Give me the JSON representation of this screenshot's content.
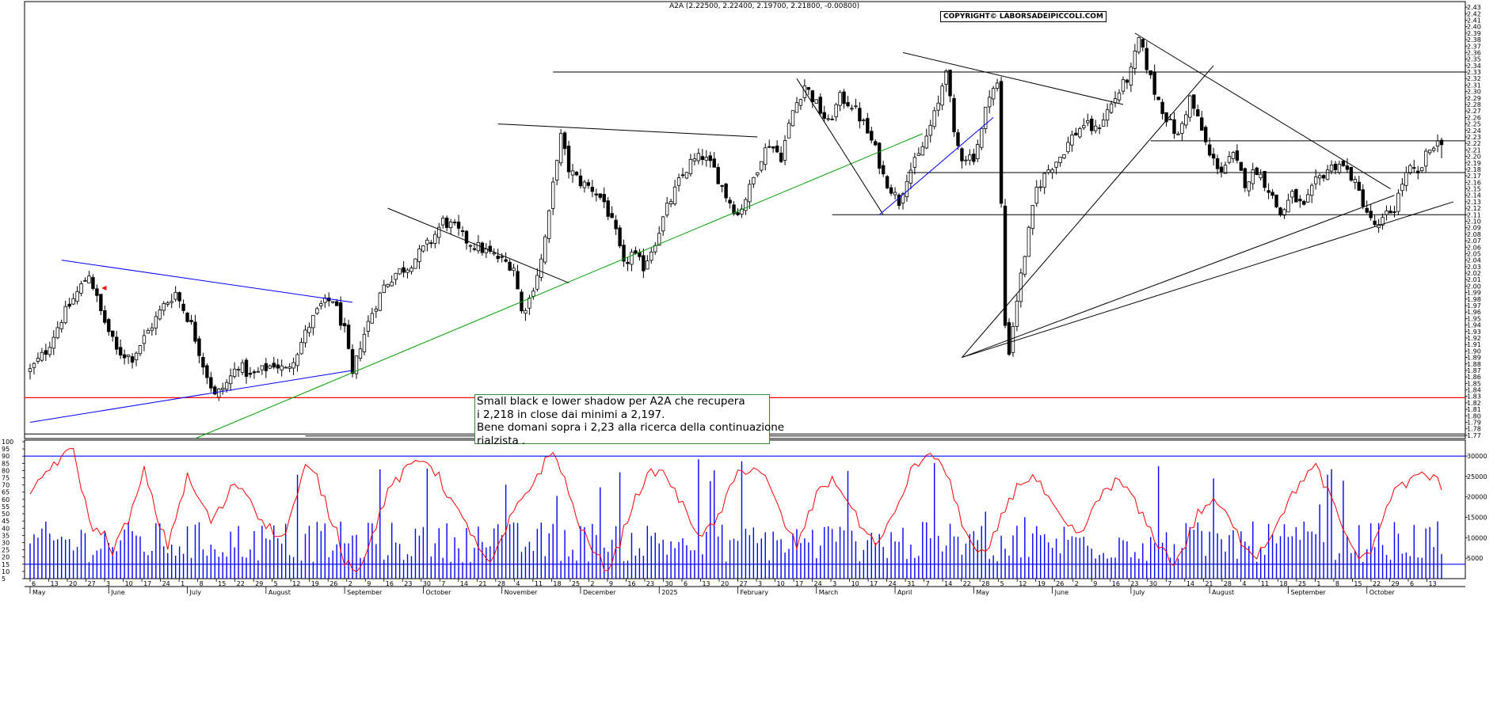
{
  "header": {
    "title": "A2A (2.22500, 2.22400, 2.19700, 2.21800, -0.00800)",
    "copyright": "COPYRIGHT© LABORSADEIPICCOLI.COM"
  },
  "annotation": {
    "lines": [
      "Small black e lower shadow per A2A che recupera",
      "i 2,218 in close dai minimi a 2,197.",
      "Bene domani sopra i 2,23 alla ricerca della continuazione",
      "rialzista ."
    ]
  },
  "colors": {
    "candle": "#000000",
    "oscillator": "#ff0000",
    "volume": "#0000ff",
    "support_red": "#ff0000",
    "trend_blue": "#0000ff",
    "trend_green": "#00a000",
    "annotation_border": "#3a8a3a"
  },
  "chart_data": [
    {
      "type": "candlestick",
      "ylim": [
        1.765,
        2.435
      ],
      "yticks_first": 1.77,
      "yticks_last": 2.43,
      "ytick_step": 0.01,
      "months": [
        "May",
        "June",
        "July",
        "August",
        "September",
        "October",
        "November",
        "December",
        "2025",
        "February",
        "March",
        "April",
        "May",
        "June",
        "July",
        "August",
        "September",
        "October"
      ],
      "day_ticks": [
        "6",
        "13",
        "20",
        "27",
        "3",
        "10",
        "17",
        "24",
        "1",
        "8",
        "15",
        "22",
        "29",
        "5",
        "12",
        "19",
        "26",
        "2",
        "9",
        "16",
        "23",
        "30",
        "7",
        "14",
        "21",
        "28",
        "4",
        "11",
        "18",
        "25",
        "2",
        "9",
        "16",
        "23",
        "30",
        "6",
        "13",
        "20",
        "27",
        "3",
        "10",
        "17",
        "24",
        "3",
        "10",
        "17",
        "24",
        "31",
        "7",
        "14",
        "22",
        "28",
        "5",
        "12",
        "19",
        "26",
        "2",
        "9",
        "16",
        "23",
        "30",
        "7",
        "14",
        "21",
        "28",
        "4",
        "11",
        "18",
        "25",
        "1",
        "8",
        "15",
        "22",
        "29",
        "6",
        "13"
      ],
      "anchors": [
        [
          0,
          1.87
        ],
        [
          4,
          1.9
        ],
        [
          8,
          1.95
        ],
        [
          12,
          1.99
        ],
        [
          15,
          2.02
        ],
        [
          18,
          1.96
        ],
        [
          22,
          1.9
        ],
        [
          26,
          1.89
        ],
        [
          30,
          1.93
        ],
        [
          34,
          1.97
        ],
        [
          37,
          1.99
        ],
        [
          41,
          1.94
        ],
        [
          44,
          1.88
        ],
        [
          47,
          1.83
        ],
        [
          50,
          1.85
        ],
        [
          53,
          1.88
        ],
        [
          56,
          1.86
        ],
        [
          59,
          1.87
        ],
        [
          62,
          1.88
        ],
        [
          65,
          1.87
        ],
        [
          68,
          1.9
        ],
        [
          71,
          1.94
        ],
        [
          74,
          1.97
        ],
        [
          77,
          1.98
        ],
        [
          80,
          1.93
        ],
        [
          82,
          1.86
        ],
        [
          84,
          1.91
        ],
        [
          87,
          1.96
        ],
        [
          90,
          2.0
        ],
        [
          93,
          2.02
        ],
        [
          96,
          2.03
        ],
        [
          99,
          2.05
        ],
        [
          102,
          2.07
        ],
        [
          105,
          2.1
        ],
        [
          108,
          2.09
        ],
        [
          111,
          2.07
        ],
        [
          114,
          2.06
        ],
        [
          117,
          2.05
        ],
        [
          120,
          2.04
        ],
        [
          123,
          2.03
        ],
        [
          125,
          1.96
        ],
        [
          127,
          1.98
        ],
        [
          130,
          2.04
        ],
        [
          132,
          2.11
        ],
        [
          134,
          2.2
        ],
        [
          135,
          2.23
        ],
        [
          137,
          2.18
        ],
        [
          140,
          2.16
        ],
        [
          143,
          2.15
        ],
        [
          146,
          2.13
        ],
        [
          149,
          2.08
        ],
        [
          151,
          2.03
        ],
        [
          153,
          2.05
        ],
        [
          156,
          2.03
        ],
        [
          159,
          2.07
        ],
        [
          162,
          2.12
        ],
        [
          165,
          2.16
        ],
        [
          168,
          2.19
        ],
        [
          171,
          2.2
        ],
        [
          174,
          2.18
        ],
        [
          177,
          2.14
        ],
        [
          180,
          2.11
        ],
        [
          183,
          2.15
        ],
        [
          186,
          2.2
        ],
        [
          188,
          2.22
        ],
        [
          191,
          2.2
        ],
        [
          194,
          2.27
        ],
        [
          197,
          2.31
        ],
        [
          200,
          2.28
        ],
        [
          203,
          2.25
        ],
        [
          206,
          2.29
        ],
        [
          209,
          2.28
        ],
        [
          212,
          2.25
        ],
        [
          215,
          2.21
        ],
        [
          217,
          2.17
        ],
        [
          219,
          2.15
        ],
        [
          221,
          2.13
        ],
        [
          223,
          2.17
        ],
        [
          226,
          2.2
        ],
        [
          228,
          2.23
        ],
        [
          231,
          2.28
        ],
        [
          233,
          2.34
        ],
        [
          235,
          2.23
        ],
        [
          237,
          2.2
        ],
        [
          240,
          2.2
        ],
        [
          242,
          2.24
        ],
        [
          244,
          2.3
        ],
        [
          246,
          2.31
        ],
        [
          248,
          1.94
        ],
        [
          249,
          1.9
        ],
        [
          251,
          1.98
        ],
        [
          253,
          2.05
        ],
        [
          256,
          2.15
        ],
        [
          259,
          2.18
        ],
        [
          262,
          2.2
        ],
        [
          265,
          2.23
        ],
        [
          268,
          2.25
        ],
        [
          271,
          2.24
        ],
        [
          274,
          2.27
        ],
        [
          277,
          2.3
        ],
        [
          280,
          2.33
        ],
        [
          282,
          2.38
        ],
        [
          284,
          2.34
        ],
        [
          286,
          2.3
        ],
        [
          289,
          2.26
        ],
        [
          292,
          2.23
        ],
        [
          295,
          2.29
        ],
        [
          298,
          2.24
        ],
        [
          300,
          2.2
        ],
        [
          303,
          2.18
        ],
        [
          306,
          2.2
        ],
        [
          309,
          2.16
        ],
        [
          312,
          2.18
        ],
        [
          315,
          2.15
        ],
        [
          318,
          2.11
        ],
        [
          321,
          2.14
        ],
        [
          324,
          2.12
        ],
        [
          327,
          2.16
        ],
        [
          330,
          2.18
        ],
        [
          333,
          2.19
        ],
        [
          336,
          2.17
        ],
        [
          339,
          2.13
        ],
        [
          341,
          2.1
        ],
        [
          343,
          2.09
        ],
        [
          345,
          2.11
        ],
        [
          347,
          2.12
        ],
        [
          349,
          2.16
        ],
        [
          351,
          2.18
        ],
        [
          353,
          2.17
        ],
        [
          355,
          2.2
        ],
        [
          357,
          2.22
        ]
      ],
      "last_candle": {
        "open": 2.225,
        "high": 2.224,
        "low": 2.197,
        "close": 2.218
      },
      "horizontal_lines": [
        {
          "y": 1.828,
          "color": "red"
        },
        {
          "y": 2.33,
          "from": 133
        },
        {
          "y": 2.175,
          "from": 223
        },
        {
          "y": 2.224,
          "from": 285
        },
        {
          "y": 2.11,
          "from": 204
        },
        {
          "y": 1.772
        },
        {
          "y": 1.769,
          "from": 70
        }
      ],
      "trendlines": [
        {
          "p1": [
            8,
            2.04
          ],
          "p2": [
            82,
            1.975
          ],
          "color": "blue"
        },
        {
          "p1": [
            0,
            1.79
          ],
          "p2": [
            82,
            1.87
          ],
          "color": "blue"
        },
        {
          "p1": [
            42,
            1.765
          ],
          "p2": [
            227,
            2.235
          ],
          "color": "green"
        },
        {
          "p1": [
            91,
            2.12
          ],
          "p2": [
            137,
            2.005
          ]
        },
        {
          "p1": [
            119,
            2.25
          ],
          "p2": [
            185,
            2.23
          ]
        },
        {
          "p1": [
            195,
            2.32
          ],
          "p2": [
            217,
            2.11
          ]
        },
        {
          "p1": [
            216,
            2.11
          ],
          "p2": [
            245,
            2.26
          ],
          "color": "blue"
        },
        {
          "p1": [
            222,
            2.36
          ],
          "p2": [
            278,
            2.28
          ]
        },
        {
          "p1": [
            281,
            2.39
          ],
          "p2": [
            346,
            2.15
          ]
        },
        {
          "p1": [
            237,
            1.89
          ],
          "p2": [
            347,
            2.14
          ]
        },
        {
          "p1": [
            237,
            1.89
          ],
          "p2": [
            362,
            2.13
          ]
        },
        {
          "p1": [
            237,
            1.89
          ],
          "p2": [
            301,
            2.34
          ]
        }
      ]
    },
    {
      "type": "line",
      "name": "oscillator",
      "ylim": [
        5,
        100
      ],
      "yticks": [
        5,
        10,
        15,
        20,
        25,
        30,
        35,
        40,
        45,
        50,
        55,
        60,
        65,
        70,
        75,
        80,
        85,
        90,
        95,
        100
      ],
      "levels": [
        90,
        15
      ],
      "anchors": [
        [
          0,
          60
        ],
        [
          3,
          75
        ],
        [
          6,
          85
        ],
        [
          9,
          90
        ],
        [
          11,
          95
        ],
        [
          13,
          70
        ],
        [
          15,
          45
        ],
        [
          17,
          38
        ],
        [
          19,
          35
        ],
        [
          21,
          25
        ],
        [
          24,
          40
        ],
        [
          27,
          60
        ],
        [
          29,
          80
        ],
        [
          31,
          60
        ],
        [
          33,
          42
        ],
        [
          35,
          28
        ],
        [
          37,
          48
        ],
        [
          40,
          75
        ],
        [
          43,
          60
        ],
        [
          46,
          45
        ],
        [
          49,
          55
        ],
        [
          52,
          72
        ],
        [
          55,
          65
        ],
        [
          58,
          50
        ],
        [
          61,
          40
        ],
        [
          64,
          32
        ],
        [
          67,
          55
        ],
        [
          70,
          82
        ],
        [
          73,
          75
        ],
        [
          76,
          50
        ],
        [
          78,
          38
        ],
        [
          80,
          18
        ],
        [
          83,
          12
        ],
        [
          86,
          25
        ],
        [
          89,
          52
        ],
        [
          92,
          70
        ],
        [
          95,
          78
        ],
        [
          98,
          86
        ],
        [
          101,
          88
        ],
        [
          104,
          75
        ],
        [
          107,
          60
        ],
        [
          110,
          45
        ],
        [
          113,
          35
        ],
        [
          115,
          20
        ],
        [
          117,
          15
        ],
        [
          119,
          25
        ],
        [
          122,
          45
        ],
        [
          125,
          60
        ],
        [
          128,
          72
        ],
        [
          131,
          86
        ],
        [
          133,
          92
        ],
        [
          135,
          82
        ],
        [
          138,
          55
        ],
        [
          141,
          35
        ],
        [
          144,
          20
        ],
        [
          147,
          12
        ],
        [
          150,
          30
        ],
        [
          153,
          55
        ],
        [
          156,
          72
        ],
        [
          159,
          80
        ],
        [
          162,
          76
        ],
        [
          165,
          60
        ],
        [
          168,
          45
        ],
        [
          171,
          35
        ],
        [
          174,
          42
        ],
        [
          177,
          60
        ],
        [
          180,
          78
        ],
        [
          183,
          82
        ],
        [
          186,
          80
        ],
        [
          189,
          62
        ],
        [
          192,
          42
        ],
        [
          195,
          28
        ],
        [
          198,
          48
        ],
        [
          201,
          70
        ],
        [
          204,
          72
        ],
        [
          207,
          65
        ],
        [
          210,
          48
        ],
        [
          213,
          35
        ],
        [
          216,
          30
        ],
        [
          219,
          45
        ],
        [
          222,
          65
        ],
        [
          225,
          85
        ],
        [
          228,
          88
        ],
        [
          231,
          90
        ],
        [
          234,
          70
        ],
        [
          237,
          45
        ],
        [
          240,
          25
        ],
        [
          243,
          20
        ],
        [
          246,
          40
        ],
        [
          249,
          60
        ],
        [
          252,
          72
        ],
        [
          255,
          76
        ],
        [
          258,
          65
        ],
        [
          261,
          50
        ],
        [
          264,
          40
        ],
        [
          267,
          35
        ],
        [
          270,
          50
        ],
        [
          273,
          66
        ],
        [
          276,
          72
        ],
        [
          279,
          68
        ],
        [
          282,
          52
        ],
        [
          285,
          38
        ],
        [
          288,
          25
        ],
        [
          291,
          15
        ],
        [
          294,
          30
        ],
        [
          297,
          50
        ],
        [
          300,
          58
        ],
        [
          303,
          55
        ],
        [
          306,
          40
        ],
        [
          309,
          28
        ],
        [
          312,
          22
        ],
        [
          315,
          32
        ],
        [
          318,
          50
        ],
        [
          321,
          62
        ],
        [
          324,
          76
        ],
        [
          327,
          82
        ],
        [
          330,
          66
        ],
        [
          333,
          45
        ],
        [
          336,
          28
        ],
        [
          339,
          18
        ],
        [
          342,
          30
        ],
        [
          345,
          55
        ],
        [
          348,
          70
        ],
        [
          351,
          72
        ],
        [
          354,
          78
        ],
        [
          357,
          74
        ],
        [
          359,
          70
        ]
      ],
      "volume_axis": {
        "ylim": [
          0,
          33500
        ],
        "yticks": [
          5000,
          10000,
          15000,
          20000,
          25000,
          30000
        ]
      }
    }
  ]
}
